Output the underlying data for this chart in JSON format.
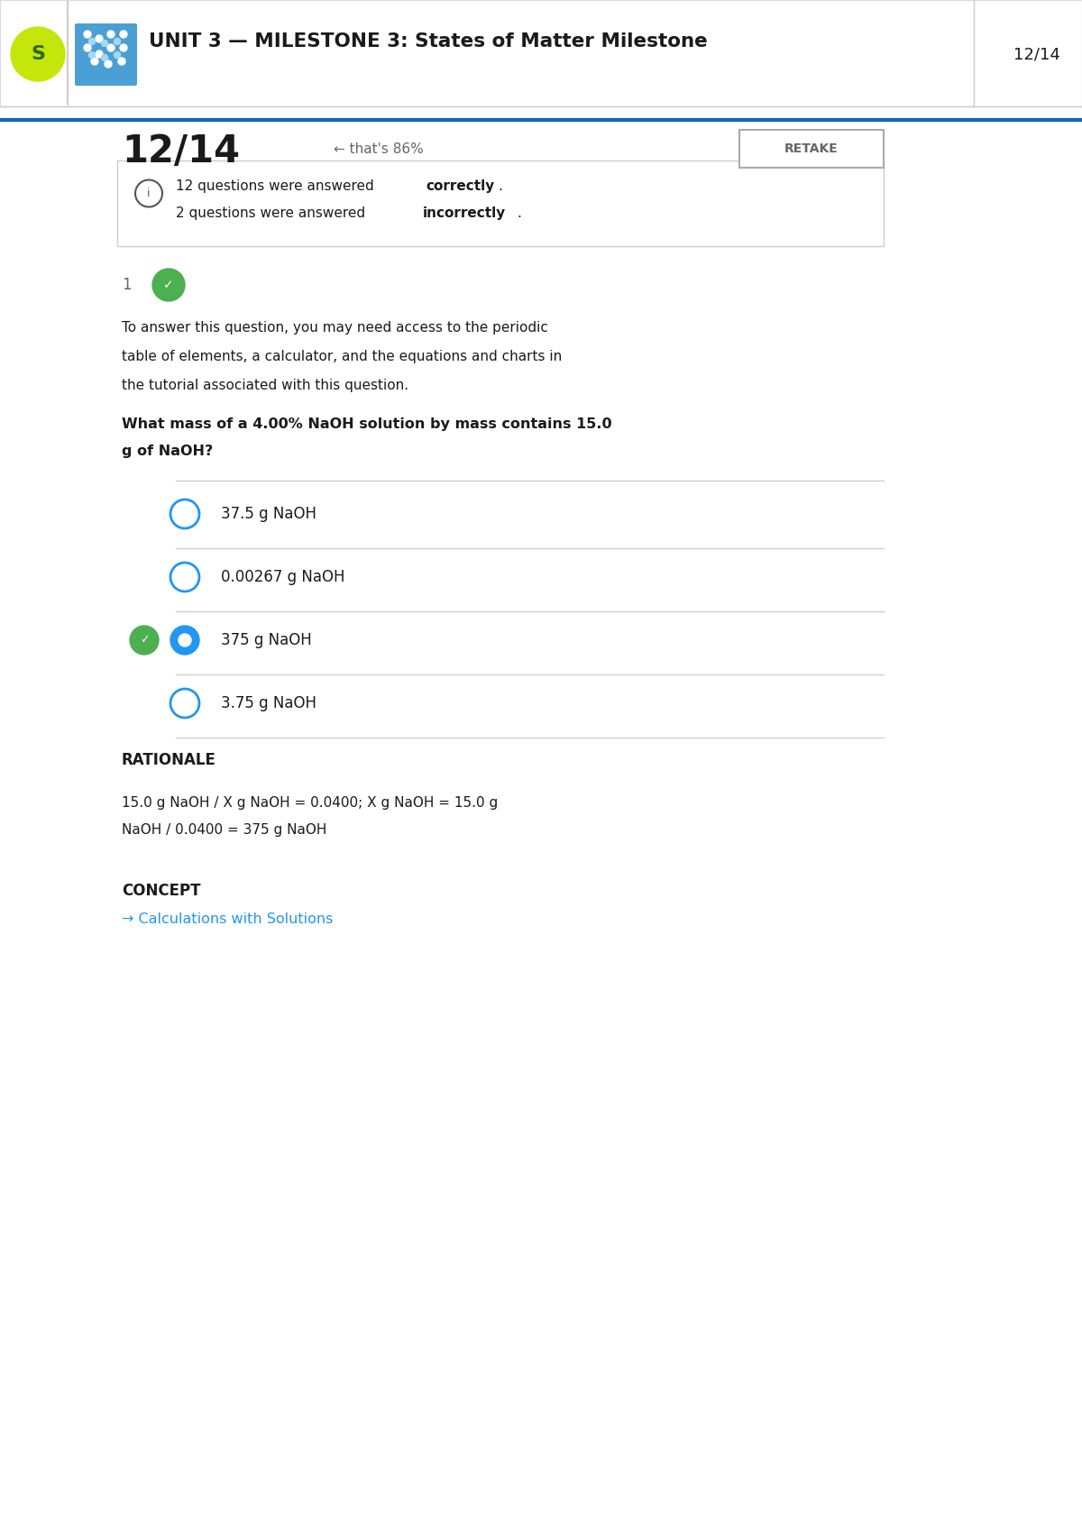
{
  "header_title": "UNIT 3 — MILESTONE 3: States of Matter Milestone",
  "score": "12/14",
  "score_label": "12/14",
  "percent_text": "← that's 86%",
  "retake_text": "RETAKE",
  "correct_count": 12,
  "incorrect_count": 2,
  "question_number": "1",
  "intro_text": "To answer this question, you may need access to the periodic table of elements, a calculator, and the equations and charts in the tutorial associated with this question.",
  "question_text": "What mass of a 4.00% NaOH solution by mass contains 15.0 g of NaOH?",
  "options": [
    "37.5 g NaOH",
    "0.00267 g NaOH",
    "375 g NaOH",
    "3.75 g NaOH"
  ],
  "correct_option_index": 2,
  "selected_option_index": 2,
  "rationale_label": "RATIONALE",
  "rationale_text": "15.0 g NaOH / X g NaOH = 0.0400; X g NaOH = 15.0 g NaOH / 0.0400 = 375 g NaOH",
  "concept_label": "CONCEPT",
  "concept_link": "→ Calculations with Solutions",
  "bg_color": "#ffffff",
  "header_bg": "#ffffff",
  "border_color": "#e0e0e0",
  "text_color": "#1a1a1a",
  "link_color": "#2196F3",
  "green_color": "#4CAF50",
  "blue_circle_color": "#2196F3",
  "gray_text": "#666666",
  "retake_border": "#aaaaaa",
  "info_box_border": "#cccccc",
  "separator_color": "#d0d0d0"
}
